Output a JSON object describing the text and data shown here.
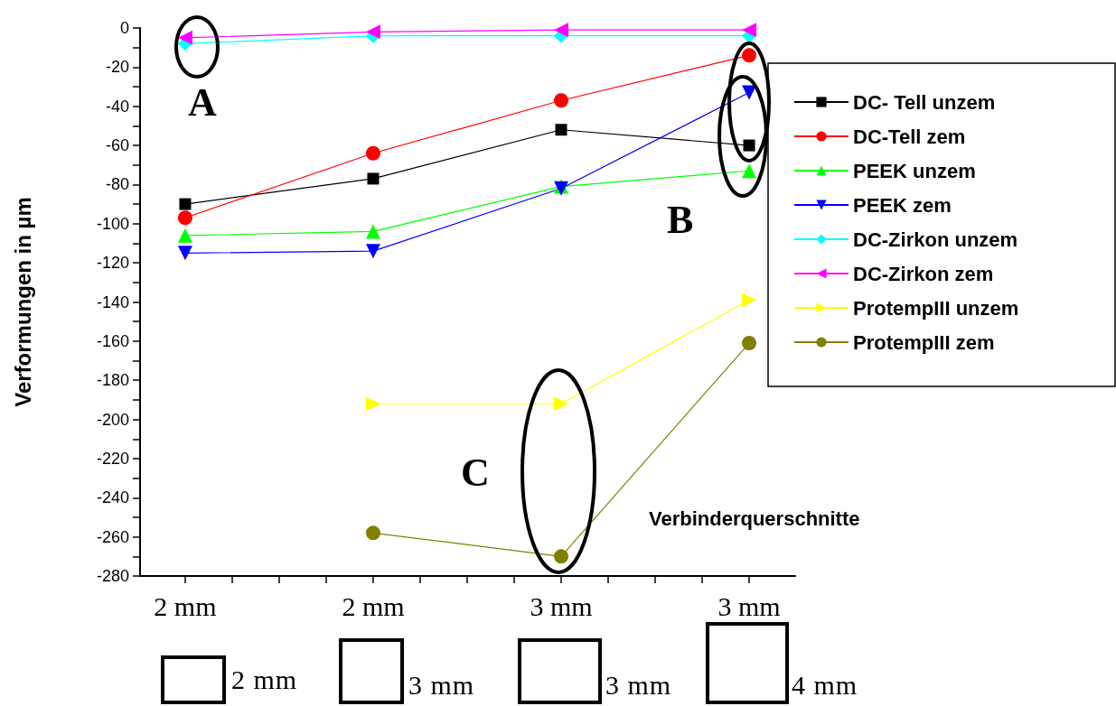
{
  "chart_data": {
    "type": "line",
    "categories": [
      "2 mm",
      "2 mm",
      "3 mm",
      "3 mm"
    ],
    "xlabel": "Verbinderquerschnitte",
    "ylabel": "Verformungen in µm",
    "ylim": [
      -280,
      0
    ],
    "yticks": [
      -280,
      {
        "value": -270,
        "label": null
      },
      -260,
      {
        "value": -250,
        "label": null
      },
      -240,
      {
        "value": -230,
        "label": null
      },
      -220,
      {
        "value": -210,
        "label": null
      },
      -200,
      {
        "value": -190,
        "label": null
      },
      -180,
      {
        "value": -170,
        "label": null
      },
      -160,
      {
        "value": -150,
        "label": null
      },
      -140,
      {
        "value": -130,
        "label": null
      },
      -120,
      {
        "value": -110,
        "label": null
      },
      -100,
      {
        "value": -90,
        "label": null
      },
      -80,
      {
        "value": -70,
        "label": null
      },
      -60,
      {
        "value": -50,
        "label": null
      },
      -40,
      {
        "value": -30,
        "label": null
      },
      -20,
      {
        "value": -10,
        "label": null
      },
      0
    ],
    "grid": false,
    "legend": "right",
    "line_style": "solid",
    "series": [
      {
        "name": "DC- Tell unzem",
        "color": "#000000",
        "marker": "square",
        "values": [
          -90,
          -77,
          -52,
          -60
        ]
      },
      {
        "name": "DC-Tell zem",
        "color": "#ff0000",
        "marker": "circle",
        "values": [
          -97,
          -64,
          -37,
          -14
        ]
      },
      {
        "name": "PEEK unzem",
        "color": "#00ff00",
        "marker": "triangle",
        "values": [
          -106,
          -104,
          -81,
          -73
        ]
      },
      {
        "name": "PEEK zem",
        "color": "#0000ff",
        "marker": "triangle-down",
        "values": [
          -115,
          -114,
          -82,
          -33
        ]
      },
      {
        "name": "DC-Zirkon unzem",
        "color": "#00ffff",
        "marker": "diamond",
        "values": [
          -8,
          -4,
          -4,
          -4
        ]
      },
      {
        "name": "DC-Zirkon zem",
        "color": "#ff00ff",
        "marker": "triangle-left",
        "values": [
          -5,
          -2,
          -1,
          -1
        ]
      },
      {
        "name": "ProtempIII unzem",
        "color": "#ffff00",
        "marker": "triangle-right",
        "values": [
          null,
          -192,
          -192,
          -139
        ]
      },
      {
        "name": "ProtempIII zem",
        "color": "#808000",
        "marker": "circle",
        "values": [
          null,
          -258,
          -270,
          -161
        ]
      }
    ],
    "annotations": [
      "A",
      "B",
      "C",
      "2 mm",
      "3 mm",
      "3 mm",
      "4 mm"
    ]
  }
}
